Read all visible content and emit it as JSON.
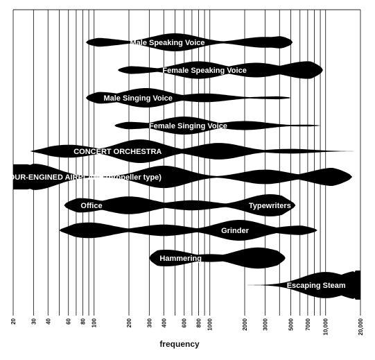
{
  "chart_data": {
    "type": "frequency-range-diagram",
    "xlabel": "frequency",
    "x_scale": "log",
    "xlim": [
      20,
      20000
    ],
    "ticks": [
      20,
      30,
      40,
      50,
      60,
      70,
      80,
      90,
      100,
      200,
      300,
      400,
      500,
      600,
      700,
      800,
      900,
      1000,
      2000,
      3000,
      4000,
      5000,
      6000,
      7000,
      8000,
      9000,
      10000,
      20000
    ],
    "tick_labels": [
      {
        "value": 20,
        "label": "20"
      },
      {
        "value": 30,
        "label": "30"
      },
      {
        "value": 40,
        "label": "40"
      },
      {
        "value": 60,
        "label": "60"
      },
      {
        "value": 80,
        "label": "80"
      },
      {
        "value": 100,
        "label": "100"
      },
      {
        "value": 200,
        "label": "200"
      },
      {
        "value": 300,
        "label": "300"
      },
      {
        "value": 400,
        "label": "400"
      },
      {
        "value": 600,
        "label": "600"
      },
      {
        "value": 800,
        "label": "800"
      },
      {
        "value": 1000,
        "label": "1000"
      },
      {
        "value": 2000,
        "label": "2000"
      },
      {
        "value": 3000,
        "label": "3000"
      },
      {
        "value": 5000,
        "label": "5000"
      },
      {
        "value": 7000,
        "label": "7000"
      },
      {
        "value": 10000,
        "label": "10,000"
      },
      {
        "value": 20000,
        "label": "20,000"
      }
    ],
    "bands": [
      {
        "name": "Male Speaking Voice",
        "range": [
          85,
          5200
        ],
        "lobes": [
          [
            100,
            0.5
          ],
          [
            500,
            1.0
          ],
          [
            3000,
            0.6
          ],
          [
            4500,
            0.7
          ]
        ],
        "labels": [
          {
            "text": "Male Speaking Voice",
            "at": 430
          }
        ]
      },
      {
        "name": "Female Speaking Voice",
        "range": [
          160,
          9500
        ],
        "lobes": [
          [
            200,
            0.4
          ],
          [
            800,
            0.9
          ],
          [
            2500,
            0.75
          ],
          [
            7000,
            0.9
          ]
        ],
        "labels": [
          {
            "text": "Female Speaking Voice",
            "at": 900
          }
        ]
      },
      {
        "name": "Male Singing Voice",
        "range": [
          85,
          5000
        ],
        "lobes": [
          [
            110,
            0.6
          ],
          [
            280,
            1.0
          ],
          [
            900,
            0.45
          ],
          [
            4000,
            0.15
          ]
        ],
        "labels": [
          {
            "text": "Male Singing Voice",
            "at": 240
          }
        ]
      },
      {
        "name": "Female Singing Voice",
        "range": [
          150,
          9000
        ],
        "lobes": [
          [
            200,
            0.4
          ],
          [
            600,
            1.0
          ],
          [
            2000,
            0.5
          ],
          [
            7000,
            0.1
          ]
        ],
        "labels": [
          {
            "text": "Female Singing Voice",
            "at": 650
          }
        ]
      },
      {
        "name": "CONCERT ORCHESTRA",
        "range": [
          28,
          20000
        ],
        "lobes": [
          [
            60,
            0.55
          ],
          [
            250,
            1.0
          ],
          [
            1200,
            0.7
          ],
          [
            5000,
            0.2
          ]
        ],
        "labels": [
          {
            "text": "CONCERT ORCHESTRA",
            "at": 160
          }
        ]
      },
      {
        "name": "FOUR-ENGINED AIRPLANE (propeller type)",
        "range": [
          20,
          17000
        ],
        "lobes": [
          [
            30,
            1.0
          ],
          [
            400,
            0.85
          ],
          [
            3000,
            0.55
          ],
          [
            12000,
            0.7
          ]
        ],
        "labels": [
          {
            "text": "FOUR-ENGINED AIRPLANE (propeller type)",
            "at": 80
          }
        ]
      },
      {
        "name": "Office Typewriters",
        "range": [
          55,
          5500
        ],
        "lobes": [
          [
            75,
            0.65
          ],
          [
            200,
            0.8
          ],
          [
            700,
            0.45
          ],
          [
            3300,
            1.0
          ]
        ],
        "labels": [
          {
            "text": "Office",
            "at": 95
          },
          {
            "text": "Typewriters",
            "at": 3300
          }
        ]
      },
      {
        "name": "Grinder",
        "range": [
          50,
          8500
        ],
        "lobes": [
          [
            90,
            0.75
          ],
          [
            400,
            0.55
          ],
          [
            1800,
            1.0
          ],
          [
            6000,
            0.45
          ]
        ],
        "labels": [
          {
            "text": "Grinder",
            "at": 1650
          }
        ]
      },
      {
        "name": "Hammering",
        "range": [
          300,
          4500
        ],
        "lobes": [
          [
            420,
            0.75
          ],
          [
            1000,
            0.35
          ],
          [
            2600,
            0.95
          ]
        ],
        "labels": [
          {
            "text": "Hammering",
            "at": 560
          }
        ]
      },
      {
        "name": "Escaping Steam",
        "range": [
          1900,
          20000
        ],
        "lobes": [
          [
            10000,
            0.9
          ],
          [
            20000,
            1.0
          ]
        ],
        "labels": [
          {
            "text": "Escaping Steam",
            "at": 8300
          }
        ]
      }
    ]
  }
}
